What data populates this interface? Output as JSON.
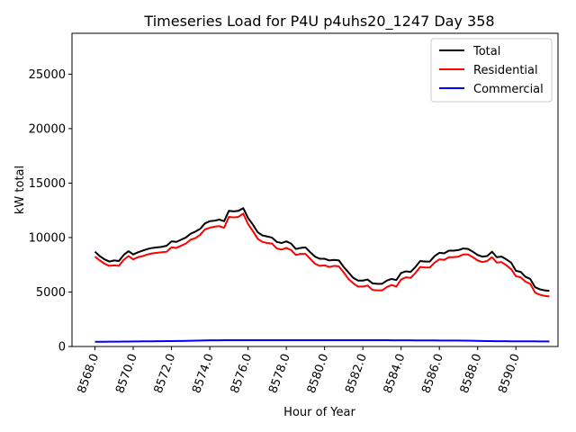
{
  "chart_data": {
    "type": "line",
    "title": "Timeseries Load for P4U p4uhs20_1247  Day 358",
    "xlabel": "Hour of Year",
    "ylabel": "kW total",
    "xlim": [
      8566.8,
      8592.2
    ],
    "ylim": [
      0,
      28750
    ],
    "x_ticks": [
      8568,
      8570,
      8572,
      8574,
      8576,
      8578,
      8580,
      8582,
      8584,
      8586,
      8588,
      8590
    ],
    "x_tick_labels": [
      "8568.0",
      "8570.0",
      "8572.0",
      "8574.0",
      "8576.0",
      "8578.0",
      "8580.0",
      "8582.0",
      "8584.0",
      "8586.0",
      "8588.0",
      "8590.0"
    ],
    "y_ticks": [
      0,
      5000,
      10000,
      15000,
      20000,
      25000
    ],
    "y_tick_labels": [
      "0",
      "5000",
      "10000",
      "15000",
      "20000",
      "25000"
    ],
    "legend_position": "top-right",
    "x": [
      8568.0,
      8568.25,
      8568.5,
      8568.75,
      8569.0,
      8569.25,
      8569.5,
      8569.75,
      8570.0,
      8570.25,
      8570.5,
      8570.75,
      8571.0,
      8571.25,
      8571.5,
      8571.75,
      8572.0,
      8572.25,
      8572.5,
      8572.75,
      8573.0,
      8573.25,
      8573.5,
      8573.75,
      8574.0,
      8574.25,
      8574.5,
      8574.75,
      8575.0,
      8575.25,
      8575.5,
      8575.75,
      8576.0,
      8576.25,
      8576.5,
      8576.75,
      8577.0,
      8577.25,
      8577.5,
      8577.75,
      8578.0,
      8578.25,
      8578.5,
      8578.75,
      8579.0,
      8579.25,
      8579.5,
      8579.75,
      8580.0,
      8580.25,
      8580.5,
      8580.75,
      8581.0,
      8581.25,
      8581.5,
      8581.75,
      8582.0,
      8582.25,
      8582.5,
      8582.75,
      8583.0,
      8583.25,
      8583.5,
      8583.75,
      8584.0,
      8584.25,
      8584.5,
      8584.75,
      8585.0,
      8585.25,
      8585.5,
      8585.75,
      8586.0,
      8586.25,
      8586.5,
      8586.75,
      8587.0,
      8587.25,
      8587.5,
      8587.75,
      8588.0,
      8588.25,
      8588.5,
      8588.75,
      8589.0,
      8589.25,
      8589.5,
      8589.75,
      8590.0,
      8590.25,
      8590.5,
      8590.75,
      8591.0,
      8591.25,
      8591.5,
      8591.75
    ],
    "series": [
      {
        "name": "Total",
        "color": "#000000",
        "values": [
          8700,
          8300,
          8000,
          7800,
          7900,
          7850,
          8400,
          8750,
          8450,
          8650,
          8800,
          8950,
          9050,
          9100,
          9150,
          9250,
          9650,
          9600,
          9800,
          10000,
          10350,
          10550,
          10800,
          11300,
          11500,
          11550,
          11650,
          11500,
          12450,
          12400,
          12450,
          12700,
          11800,
          11200,
          10500,
          10200,
          10100,
          10000,
          9600,
          9500,
          9650,
          9450,
          8950,
          9050,
          9100,
          8650,
          8250,
          8050,
          8050,
          7900,
          7950,
          7900,
          7300,
          6800,
          6300,
          6050,
          6050,
          6150,
          5800,
          5750,
          5750,
          6050,
          6200,
          6100,
          6750,
          6900,
          6850,
          7300,
          7850,
          7800,
          7800,
          8300,
          8600,
          8550,
          8800,
          8800,
          8850,
          9000,
          8950,
          8700,
          8400,
          8250,
          8300,
          8700,
          8200,
          8250,
          8000,
          7700,
          6950,
          6850,
          6400,
          6200,
          5450,
          5250,
          5150,
          5100
        ]
      },
      {
        "name": "Residential",
        "color": "#ff0000",
        "values": [
          8250,
          7900,
          7600,
          7400,
          7450,
          7400,
          7950,
          8300,
          8000,
          8200,
          8300,
          8450,
          8550,
          8600,
          8650,
          8700,
          9100,
          9050,
          9250,
          9450,
          9800,
          9950,
          10250,
          10750,
          10900,
          11000,
          11050,
          10900,
          11900,
          11850,
          11900,
          12200,
          11250,
          10600,
          9900,
          9600,
          9500,
          9450,
          9000,
          8900,
          9050,
          8850,
          8400,
          8500,
          8500,
          8050,
          7600,
          7400,
          7450,
          7300,
          7400,
          7350,
          6800,
          6200,
          5800,
          5500,
          5500,
          5600,
          5200,
          5150,
          5150,
          5450,
          5650,
          5500,
          6150,
          6350,
          6300,
          6750,
          7300,
          7250,
          7250,
          7700,
          8000,
          7950,
          8200,
          8200,
          8250,
          8450,
          8450,
          8200,
          7900,
          7750,
          7850,
          8200,
          7700,
          7750,
          7450,
          7100,
          6450,
          6350,
          5950,
          5750,
          4950,
          4750,
          4650,
          4600
        ]
      },
      {
        "name": "Commercial",
        "color": "#0000ff",
        "values": [
          430,
          430,
          435,
          440,
          440,
          445,
          450,
          455,
          460,
          465,
          470,
          475,
          480,
          485,
          490,
          495,
          500,
          505,
          510,
          520,
          530,
          540,
          550,
          560,
          565,
          570,
          572,
          574,
          575,
          576,
          577,
          578,
          578,
          578,
          578,
          578,
          578,
          578,
          578,
          578,
          578,
          578,
          578,
          578,
          578,
          578,
          578,
          578,
          578,
          578,
          578,
          578,
          578,
          578,
          578,
          578,
          578,
          578,
          578,
          578,
          576,
          574,
          572,
          570,
          568,
          566,
          564,
          562,
          560,
          558,
          556,
          554,
          552,
          550,
          548,
          546,
          544,
          540,
          535,
          530,
          520,
          510,
          500,
          495,
          490,
          485,
          482,
          480,
          478,
          476,
          474,
          472,
          470,
          468,
          466,
          465
        ]
      }
    ]
  }
}
